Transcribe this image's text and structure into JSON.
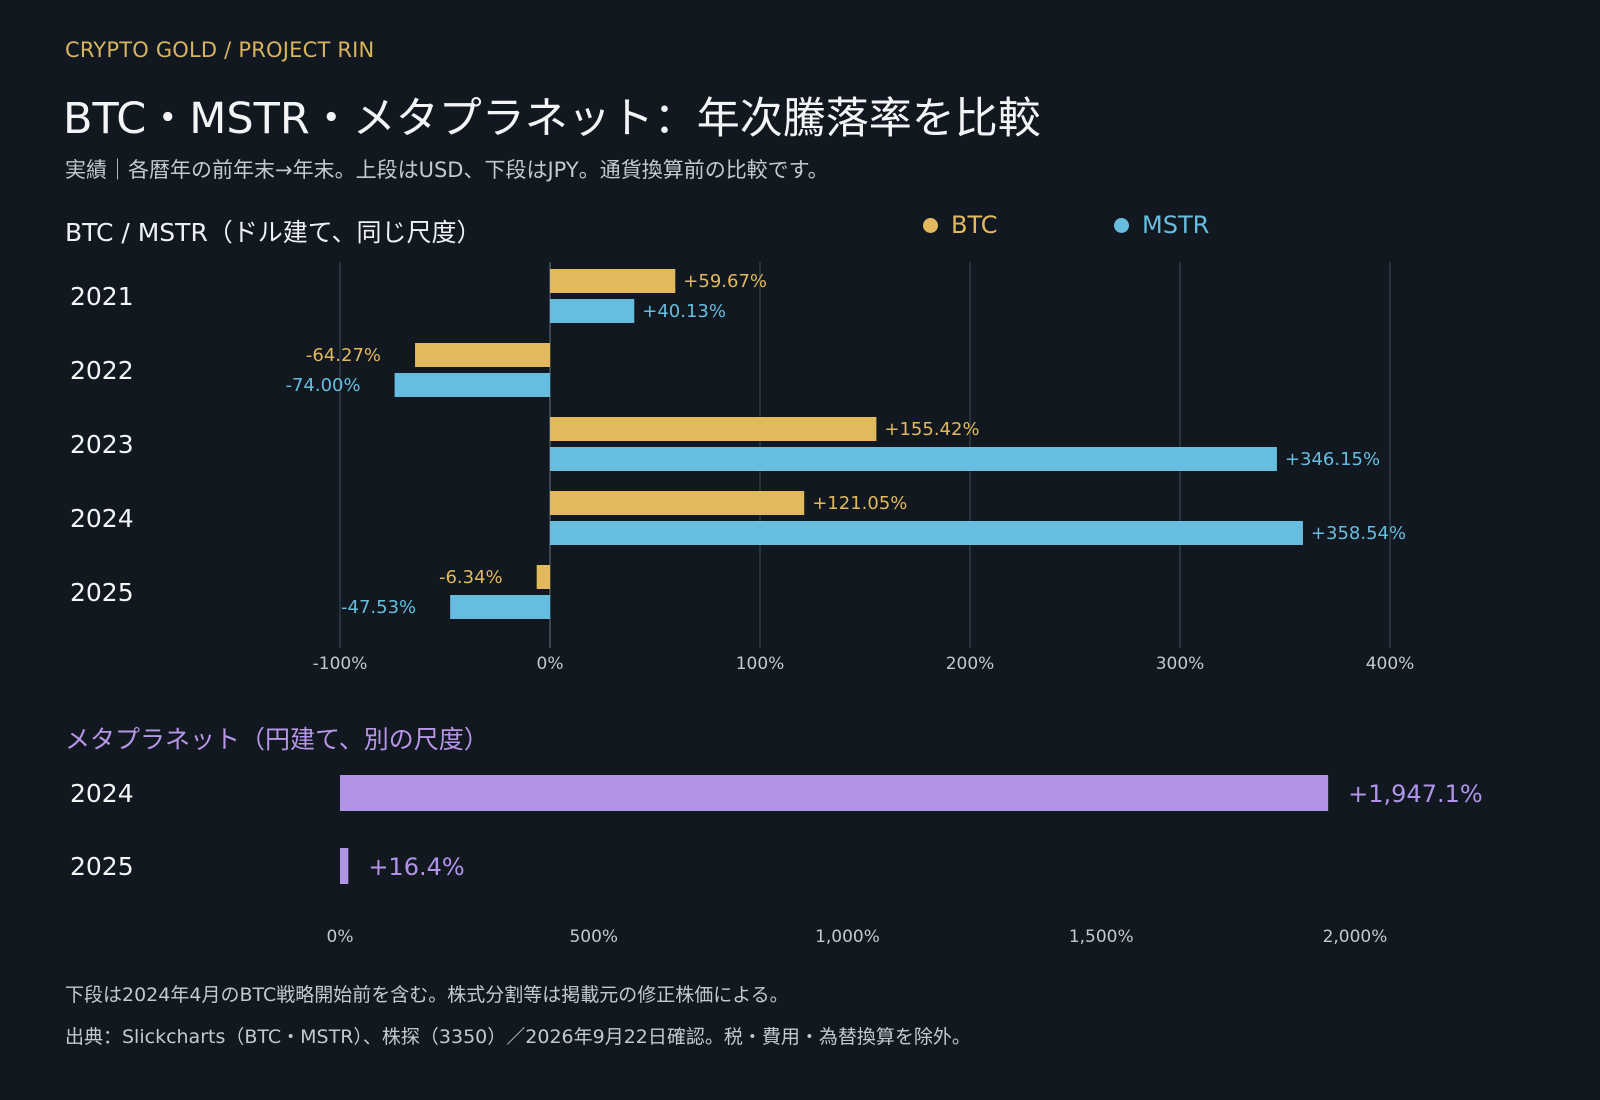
{
  "header": {
    "kicker": "CRYPTO GOLD / PROJECT RIN",
    "title": "BTC・MSTR・メタプラネット：年次騰落率を比較",
    "subtitle": "実績｜各暦年の前年末→年末。上段はUSD、下段はJPY。通貨換算前の比較です。"
  },
  "sections": {
    "top_title": "BTC / MSTR（ドル建て、同じ尺度）",
    "bottom_title": "メタプラネット（円建て、別の尺度）"
  },
  "legend": {
    "btc": "BTC",
    "mstr": "MSTR"
  },
  "colors": {
    "btc": "#e2b95c",
    "mstr": "#66bde0",
    "metaplanet": "#b194e8",
    "grid": "#2e3a45",
    "axis_text": "#c3c9d0"
  },
  "footer": {
    "note": "下段は2024年4月のBTC戦略開始前を含む。株式分割等は掲載元の修正株価による。",
    "source": "出典：Slickcharts（BTC・MSTR）、株探（3350）／2026年9月22日確認。税・費用・為替換算を除外。"
  },
  "chart_data": [
    {
      "type": "bar",
      "orientation": "horizontal",
      "title": "BTC / MSTR（ドル建て、同じ尺度）",
      "categories": [
        "2021",
        "2022",
        "2023",
        "2024",
        "2025"
      ],
      "series": [
        {
          "name": "BTC",
          "values": [
            59.67,
            -64.27,
            155.42,
            121.05,
            -6.34
          ],
          "labels": [
            "+59.67%",
            "-64.27%",
            "+155.42%",
            "+121.05%",
            "-6.34%"
          ]
        },
        {
          "name": "MSTR",
          "values": [
            40.13,
            -74.0,
            346.15,
            358.54,
            -47.53
          ],
          "labels": [
            "+40.13%",
            "-74.00%",
            "+346.15%",
            "+358.54%",
            "-47.53%"
          ]
        }
      ],
      "xlim": [
        -100,
        400
      ],
      "xticks": [
        -100,
        0,
        100,
        200,
        300,
        400
      ],
      "xtick_labels": [
        "-100%",
        "0%",
        "100%",
        "200%",
        "300%",
        "400%"
      ],
      "grid": true,
      "unit": "%"
    },
    {
      "type": "bar",
      "orientation": "horizontal",
      "title": "メタプラネット（円建て、別の尺度）",
      "categories": [
        "2024",
        "2025"
      ],
      "series": [
        {
          "name": "メタプラネット",
          "values": [
            1947.1,
            16.4
          ],
          "labels": [
            "+1,947.1%",
            "+16.4%"
          ]
        }
      ],
      "xlim": [
        0,
        2000
      ],
      "xticks": [
        0,
        500,
        1000,
        1500,
        2000
      ],
      "xtick_labels": [
        "0%",
        "500%",
        "1,000%",
        "1,500%",
        "2,000%"
      ],
      "grid": false,
      "unit": "%"
    }
  ]
}
